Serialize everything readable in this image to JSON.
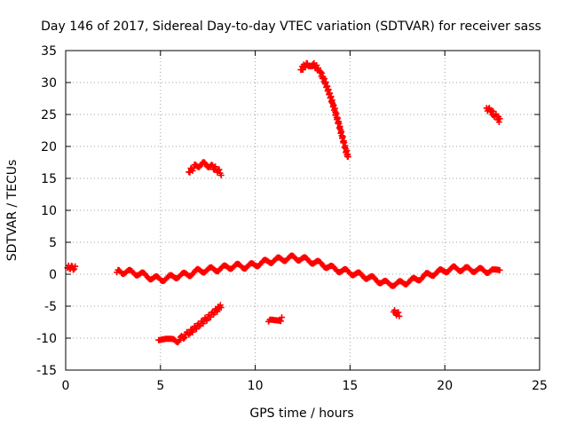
{
  "chart_data": {
    "type": "scatter",
    "title": "Day 146 of 2017, Sidereal Day-to-day VTEC variation (SDTVAR) for receiver sass",
    "xlabel": "GPS time / hours",
    "ylabel": "SDTVAR / TECUs",
    "xlim": [
      0,
      25
    ],
    "ylim": [
      -15,
      35
    ],
    "xticks": [
      0,
      5,
      10,
      15,
      20,
      25
    ],
    "yticks": [
      -15,
      -10,
      -5,
      0,
      5,
      10,
      15,
      20,
      25,
      30,
      35
    ],
    "grid": true,
    "marker": "+",
    "series_color": "#ff0000",
    "series": [
      {
        "name": "segment-1",
        "x": [
          0.1,
          0.25,
          0.4,
          0.5
        ],
        "y": [
          1.0,
          1.1,
          1.0,
          0.9
        ]
      },
      {
        "name": "segment-2",
        "x": [
          2.7,
          3.0,
          3.5,
          4.0,
          4.5,
          5.0,
          5.5,
          6.0,
          6.5,
          7.0,
          7.5,
          8.0,
          8.5,
          9.0,
          9.5,
          10.0,
          10.5,
          11.0,
          11.5,
          12.0,
          12.5,
          13.0,
          13.5,
          14.0,
          14.5,
          15.0,
          15.5,
          16.0,
          16.5,
          17.0,
          17.5,
          18.0,
          18.5,
          19.0,
          19.5,
          20.0,
          20.5,
          21.0,
          21.5,
          22.0,
          22.5,
          22.9
        ],
        "y": [
          0.3,
          0.4,
          0.3,
          0.0,
          -0.5,
          -0.8,
          -0.5,
          -0.2,
          0.0,
          0.5,
          0.7,
          0.8,
          1.1,
          1.3,
          1.2,
          1.5,
          1.9,
          2.2,
          2.4,
          2.6,
          2.4,
          2.0,
          1.6,
          1.0,
          0.6,
          0.3,
          -0.1,
          -0.5,
          -1.0,
          -1.5,
          -1.5,
          -1.2,
          -0.8,
          -0.2,
          0.2,
          0.6,
          0.9,
          0.8,
          0.7,
          0.6,
          0.5,
          0.3
        ]
      },
      {
        "name": "segment-3",
        "x": [
          4.9,
          5.3,
          5.7,
          6.0,
          6.5,
          7.0,
          7.5,
          8.0,
          8.2
        ],
        "y": [
          -10.3,
          -10.4,
          -10.5,
          -10.2,
          -9.2,
          -8.0,
          -6.8,
          -5.5,
          -4.9
        ]
      },
      {
        "name": "segment-4",
        "x": [
          6.5,
          6.8,
          7.1,
          7.4,
          7.7,
          8.0,
          8.2
        ],
        "y": [
          16.0,
          16.8,
          17.2,
          17.2,
          16.9,
          16.3,
          15.8
        ]
      },
      {
        "name": "segment-5",
        "x": [
          10.7,
          10.9,
          11.1,
          11.3,
          11.4
        ],
        "y": [
          -7.4,
          -7.3,
          -7.2,
          -7.1,
          -7.0
        ]
      },
      {
        "name": "segment-6",
        "x": [
          12.4,
          12.6,
          12.8,
          13.0,
          13.2,
          13.4,
          13.6,
          13.8,
          14.0,
          14.2,
          14.4,
          14.6,
          14.8,
          14.9
        ],
        "y": [
          32.0,
          32.6,
          32.9,
          32.9,
          32.5,
          31.8,
          30.6,
          29.2,
          27.5,
          25.6,
          23.6,
          21.4,
          19.2,
          18.3
        ]
      },
      {
        "name": "segment-7",
        "x": [
          17.3,
          17.45,
          17.6
        ],
        "y": [
          -5.9,
          -6.1,
          -6.3
        ]
      },
      {
        "name": "segment-8",
        "x": [
          22.2,
          22.4,
          22.6,
          22.8,
          22.9
        ],
        "y": [
          26.0,
          25.6,
          25.0,
          24.5,
          24.0
        ]
      }
    ]
  }
}
